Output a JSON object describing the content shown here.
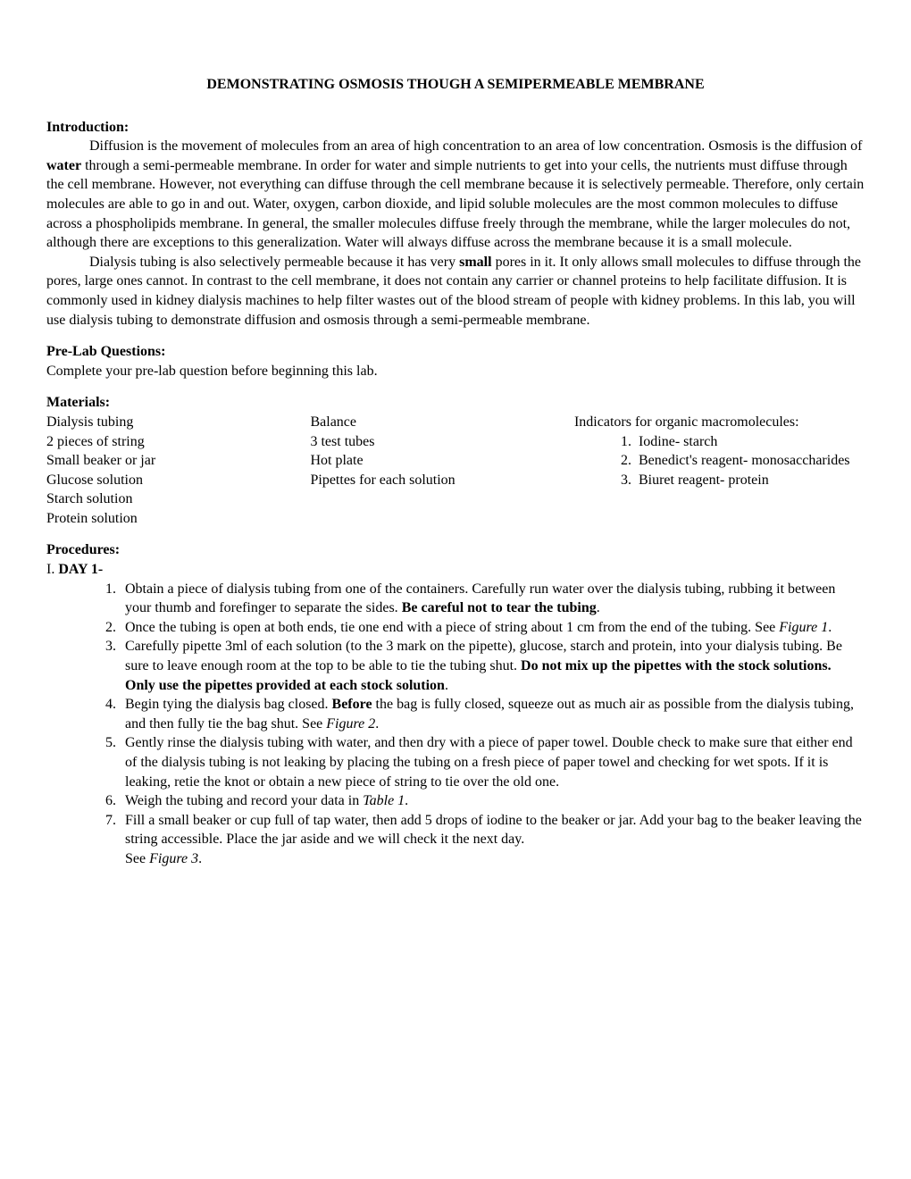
{
  "title": "DEMONSTRATING OSMOSIS THOUGH A SEMIPERMEABLE MEMBRANE",
  "intro": {
    "heading": "Introduction:",
    "p1_a": "Diffusion is the movement of molecules from an area of high concentration to an area of low concentration. Osmosis is the diffusion of ",
    "p1_b_bold": "water",
    "p1_c": " through a semi-permeable membrane. In order for water and simple nutrients to get into your cells, the nutrients must diffuse through the cell membrane. However, not everything can diffuse through the cell membrane because it is selectively permeable. Therefore, only certain molecules are able to go in and out. Water, oxygen, carbon dioxide, and lipid soluble molecules are the most common molecules to diffuse across a phospholipids membrane. In general, the smaller molecules diffuse freely through the membrane, while the larger molecules do not, although there are exceptions to this generalization. Water will always diffuse across the membrane because it is a small molecule.",
    "p2_a": "Dialysis tubing is also selectively permeable because it has very ",
    "p2_b_bold": "small",
    "p2_c": " pores in it. It only allows small molecules to diffuse through the pores, large ones cannot. In contrast to the cell membrane, it does not contain any carrier or channel proteins to help facilitate diffusion. It is commonly used in kidney dialysis machines to help filter wastes out of the blood stream of people with kidney problems. In this lab, you will use dialysis tubing to demonstrate diffusion and osmosis through a semi-permeable membrane."
  },
  "prelab": {
    "heading": "Pre-Lab Questions:",
    "text": "Complete your pre-lab question before beginning this lab."
  },
  "materials": {
    "heading": "Materials:",
    "col1": [
      "Dialysis tubing",
      "2 pieces of string",
      "Small beaker or jar",
      "Glucose solution",
      "Starch solution",
      "Protein solution"
    ],
    "col2": [
      "Balance",
      "3 test tubes",
      "Hot plate",
      "Pipettes for each solution"
    ],
    "col3_intro": "Indicators for organic macromolecules:",
    "col3_list": [
      "Iodine- starch",
      "Benedict's reagent- monosaccharides",
      "Biuret reagent- protein"
    ]
  },
  "procedures": {
    "heading": "Procedures:",
    "day_prefix": "I. ",
    "day_label": "DAY 1-",
    "steps": [
      {
        "a": "Obtain a piece of dialysis tubing from one of the containers. Carefully run water over the dialysis tubing, rubbing it between your thumb and forefinger to separate the sides. ",
        "b": "Be careful not to tear the tubing",
        "c": "."
      },
      {
        "a": "Once the tubing is open at both ends, tie one end with a piece of string about 1 cm from the end of the tubing. See ",
        "fig": "Figure 1",
        "c": "."
      },
      {
        "a": "Carefully pipette 3ml of each solution (to the 3 mark on the pipette), glucose, starch and protein, into your dialysis tubing. Be sure to leave enough room at the top to be able to tie the tubing shut. ",
        "b": "Do not mix up the pipettes with the stock solutions. Only use the pipettes provided at each stock solution",
        "c": "."
      },
      {
        "a": "Begin tying the dialysis bag closed. ",
        "b": "Before",
        "c": " the bag is fully closed, squeeze out as much air as possible from the dialysis tubing, and then fully tie the bag shut. See ",
        "fig": "Figure 2",
        "d": "."
      },
      {
        "a": "Gently rinse the dialysis tubing with water, and then dry with a piece of paper towel. Double check to make sure that either end of the dialysis tubing is not leaking by placing the tubing on a fresh piece of paper towel and checking for wet spots. If it is leaking, retie the knot or obtain a new piece of string to tie over the old one."
      },
      {
        "a": "Weigh the tubing and record your data in ",
        "fig": "Table 1",
        "c": "."
      },
      {
        "a": "Fill a small beaker or cup full of tap water, then add 5 drops of iodine to the beaker or jar. Add your bag to the beaker leaving the string accessible. Place the jar aside and we will check it the next day.",
        "br": true,
        "see": "See ",
        "fig": "Figure 3",
        "c": "."
      }
    ]
  }
}
